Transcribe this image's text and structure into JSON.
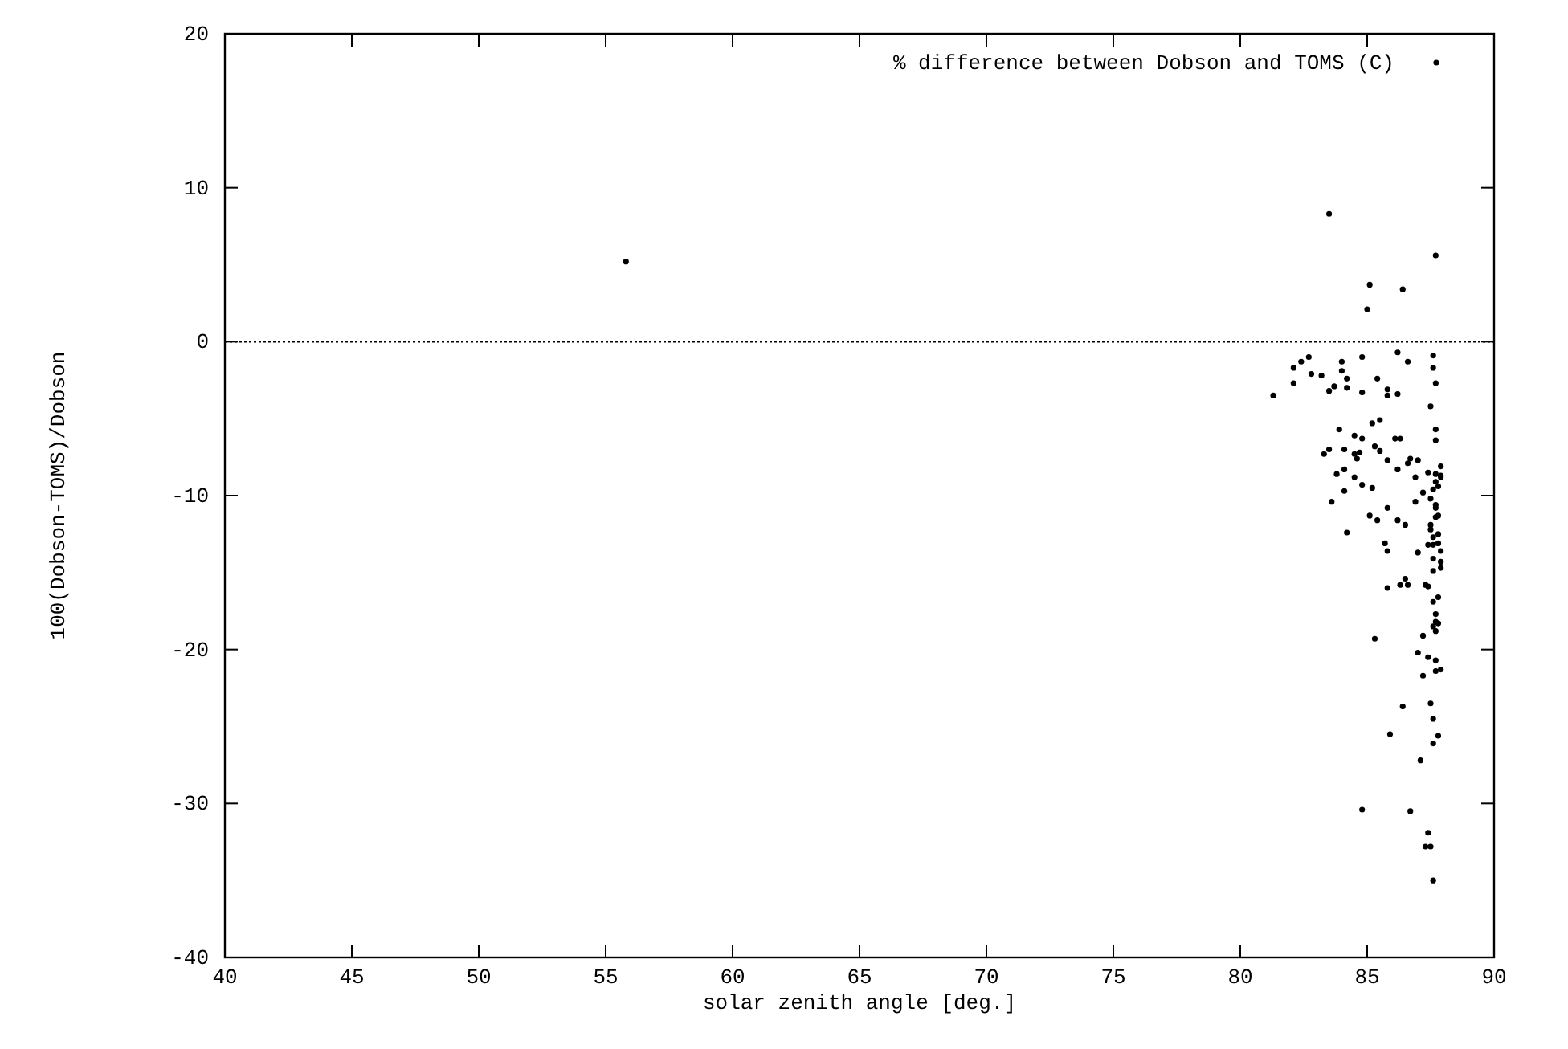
{
  "chart_data": {
    "type": "scatter",
    "xlabel": "solar zenith angle [deg.]",
    "ylabel": "100(Dobson-TOMS)/Dobson",
    "xlim": [
      40,
      90
    ],
    "ylim": [
      -40,
      20
    ],
    "xticks": [
      40,
      45,
      50,
      55,
      60,
      65,
      70,
      75,
      80,
      85,
      90
    ],
    "yticks": [
      -40,
      -30,
      -20,
      -10,
      0,
      10,
      20
    ],
    "grid": false,
    "legend": "top right",
    "marker": "circle",
    "ref_lines": [
      {
        "axis": "y",
        "value": 0,
        "line_style": "dotted",
        "color": "#000000"
      }
    ],
    "series": [
      {
        "name": "% difference between Dobson and TOMS (C)",
        "color": "#000000",
        "x": [
          55.8,
          83.5,
          87.7,
          85.1,
          86.4,
          85.0,
          86.2,
          87.6,
          82.7,
          82.4,
          84.0,
          84.8,
          86.6,
          82.1,
          87.6,
          84.0,
          82.8,
          83.2,
          84.2,
          85.4,
          87.7,
          82.1,
          83.7,
          84.2,
          83.5,
          85.8,
          84.8,
          86.2,
          85.8,
          81.3,
          87.5,
          85.5,
          85.2,
          83.9,
          87.7,
          84.5,
          84.8,
          86.3,
          86.1,
          87.7,
          85.3,
          83.5,
          84.1,
          83.3,
          85.5,
          84.5,
          84.7,
          84.6,
          85.8,
          86.7,
          87.0,
          86.6,
          87.9,
          86.2,
          84.1,
          87.4,
          83.8,
          87.7,
          87.9,
          84.5,
          86.9,
          87.9,
          87.7,
          84.8,
          85.2,
          87.8,
          87.6,
          84.1,
          87.2,
          83.6,
          87.5,
          86.9,
          87.7,
          87.7,
          85.8,
          85.1,
          87.8,
          87.7,
          85.4,
          86.2,
          86.5,
          87.5,
          87.5,
          84.2,
          87.8,
          87.6,
          85.7,
          87.4,
          87.6,
          87.8,
          85.8,
          87.0,
          87.9,
          87.6,
          87.9,
          87.9,
          87.6,
          86.5,
          86.3,
          86.6,
          87.3,
          87.4,
          85.8,
          87.8,
          87.6,
          87.7,
          87.7,
          87.8,
          87.6,
          87.7,
          87.2,
          85.3,
          87.0,
          87.4,
          87.7,
          87.7,
          87.9,
          87.2,
          86.4,
          87.5,
          87.6,
          85.9,
          87.8,
          87.6,
          87.1,
          84.8,
          86.7,
          87.4,
          87.3,
          87.5,
          87.6
        ],
        "values": [
          5.2,
          8.3,
          5.6,
          3.7,
          3.4,
          2.1,
          -0.7,
          -0.9,
          -1.0,
          -1.3,
          -1.3,
          -1.0,
          -1.3,
          -1.7,
          -1.7,
          -1.9,
          -2.1,
          -2.2,
          -2.4,
          -2.4,
          -2.7,
          -2.7,
          -2.9,
          -3.0,
          -3.2,
          -3.1,
          -3.3,
          -3.4,
          -3.5,
          -3.5,
          -4.2,
          -5.1,
          -5.3,
          -5.7,
          -5.7,
          -6.1,
          -6.3,
          -6.3,
          -6.3,
          -6.4,
          -6.8,
          -7.0,
          -7.0,
          -7.3,
          -7.1,
          -7.3,
          -7.2,
          -7.6,
          -7.7,
          -7.6,
          -7.7,
          -7.9,
          -8.1,
          -8.3,
          -8.3,
          -8.5,
          -8.6,
          -8.6,
          -8.7,
          -8.8,
          -8.8,
          -8.8,
          -9.1,
          -9.3,
          -9.5,
          -9.4,
          -9.6,
          -9.7,
          -9.8,
          -10.4,
          -10.2,
          -10.4,
          -10.6,
          -10.8,
          -10.8,
          -11.3,
          -11.3,
          -11.4,
          -11.6,
          -11.6,
          -11.9,
          -11.9,
          -12.2,
          -12.4,
          -12.5,
          -12.7,
          -13.1,
          -13.2,
          -13.2,
          -13.1,
          -13.6,
          -13.7,
          -13.6,
          -14.1,
          -14.3,
          -14.7,
          -14.9,
          -15.4,
          -15.8,
          -15.8,
          -15.8,
          -15.9,
          -16.0,
          -16.6,
          -16.9,
          -17.7,
          -18.2,
          -18.3,
          -18.5,
          -18.8,
          -19.1,
          -19.3,
          -20.2,
          -20.5,
          -20.7,
          -21.4,
          -21.3,
          -21.7,
          -23.7,
          -23.5,
          -24.5,
          -25.5,
          -25.6,
          -26.1,
          -27.2,
          -30.4,
          -30.5,
          -31.9,
          -32.8,
          -32.8,
          -35.0
        ]
      }
    ]
  }
}
